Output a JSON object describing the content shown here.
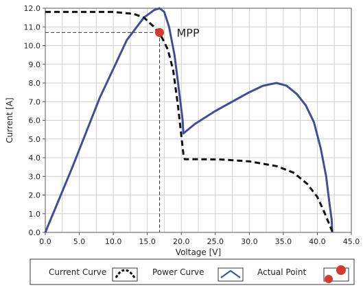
{
  "chart_data": {
    "type": "line",
    "xlabel": "Voltage [V]",
    "ylabel": "Current [A]",
    "xlim": [
      0,
      45
    ],
    "ylim": [
      0,
      12
    ],
    "x_ticks": [
      "0.0",
      "5.0",
      "10.0",
      "15.0",
      "20.0",
      "25.0",
      "30.0",
      "35.0",
      "40.0",
      "45.0"
    ],
    "y_ticks": [
      "0.0",
      "1.0",
      "2.0",
      "3.0",
      "4.0",
      "5.0",
      "6.0",
      "7.0",
      "8.0",
      "9.0",
      "10.0",
      "11.0",
      "12.0"
    ],
    "grid": true,
    "legend_position": "bottom",
    "series": [
      {
        "name": "Current Curve",
        "style": "dashed",
        "color": "#111111",
        "points": [
          [
            0,
            11.8
          ],
          [
            5,
            11.8
          ],
          [
            10,
            11.8
          ],
          [
            13,
            11.7
          ],
          [
            14.5,
            11.5
          ],
          [
            16,
            11.0
          ],
          [
            17.2,
            10.4
          ],
          [
            18,
            9.8
          ],
          [
            18.8,
            8.7
          ],
          [
            19.5,
            6.8
          ],
          [
            20,
            5.2
          ],
          [
            20.3,
            4.2
          ],
          [
            20.5,
            3.92
          ],
          [
            22,
            3.92
          ],
          [
            26,
            3.9
          ],
          [
            30,
            3.8
          ],
          [
            34,
            3.55
          ],
          [
            36.5,
            3.2
          ],
          [
            38.5,
            2.6
          ],
          [
            40,
            1.9
          ],
          [
            41,
            1.1
          ],
          [
            41.8,
            0.4
          ],
          [
            42.2,
            0.05
          ]
        ]
      },
      {
        "name": "Power Curve",
        "style": "solid",
        "color": "#444c9a",
        "points": [
          [
            0,
            0
          ],
          [
            4,
            3.5
          ],
          [
            8,
            7.2
          ],
          [
            12,
            10.3
          ],
          [
            14.5,
            11.5
          ],
          [
            16,
            11.9
          ],
          [
            16.8,
            12.0
          ],
          [
            17.5,
            11.8
          ],
          [
            18.2,
            11.0
          ],
          [
            19,
            9.5
          ],
          [
            19.7,
            7.5
          ],
          [
            20.2,
            6.0
          ],
          [
            20.3,
            5.3
          ],
          [
            22,
            5.8
          ],
          [
            25,
            6.5
          ],
          [
            28,
            7.1
          ],
          [
            30,
            7.5
          ],
          [
            32,
            7.85
          ],
          [
            34,
            8.0
          ],
          [
            35.5,
            7.85
          ],
          [
            37,
            7.4
          ],
          [
            38.3,
            6.8
          ],
          [
            39.5,
            5.9
          ],
          [
            40.5,
            4.5
          ],
          [
            41.3,
            3.0
          ],
          [
            41.8,
            1.5
          ],
          [
            42.1,
            0.7
          ],
          [
            42.2,
            0.0
          ]
        ]
      },
      {
        "name": "Actual Point",
        "style": "marker",
        "color": "#d33b2c",
        "points": [
          [
            16.8,
            10.7
          ]
        ]
      }
    ],
    "annotations": [
      {
        "text": "MPP",
        "x": 16.8,
        "y": 10.7
      }
    ],
    "reference_lines": {
      "x": 16.8,
      "y": 10.7
    }
  },
  "legend": {
    "current_label": "Current Curve",
    "power_label": "Power Curve",
    "actual_label": "Actual Point"
  }
}
